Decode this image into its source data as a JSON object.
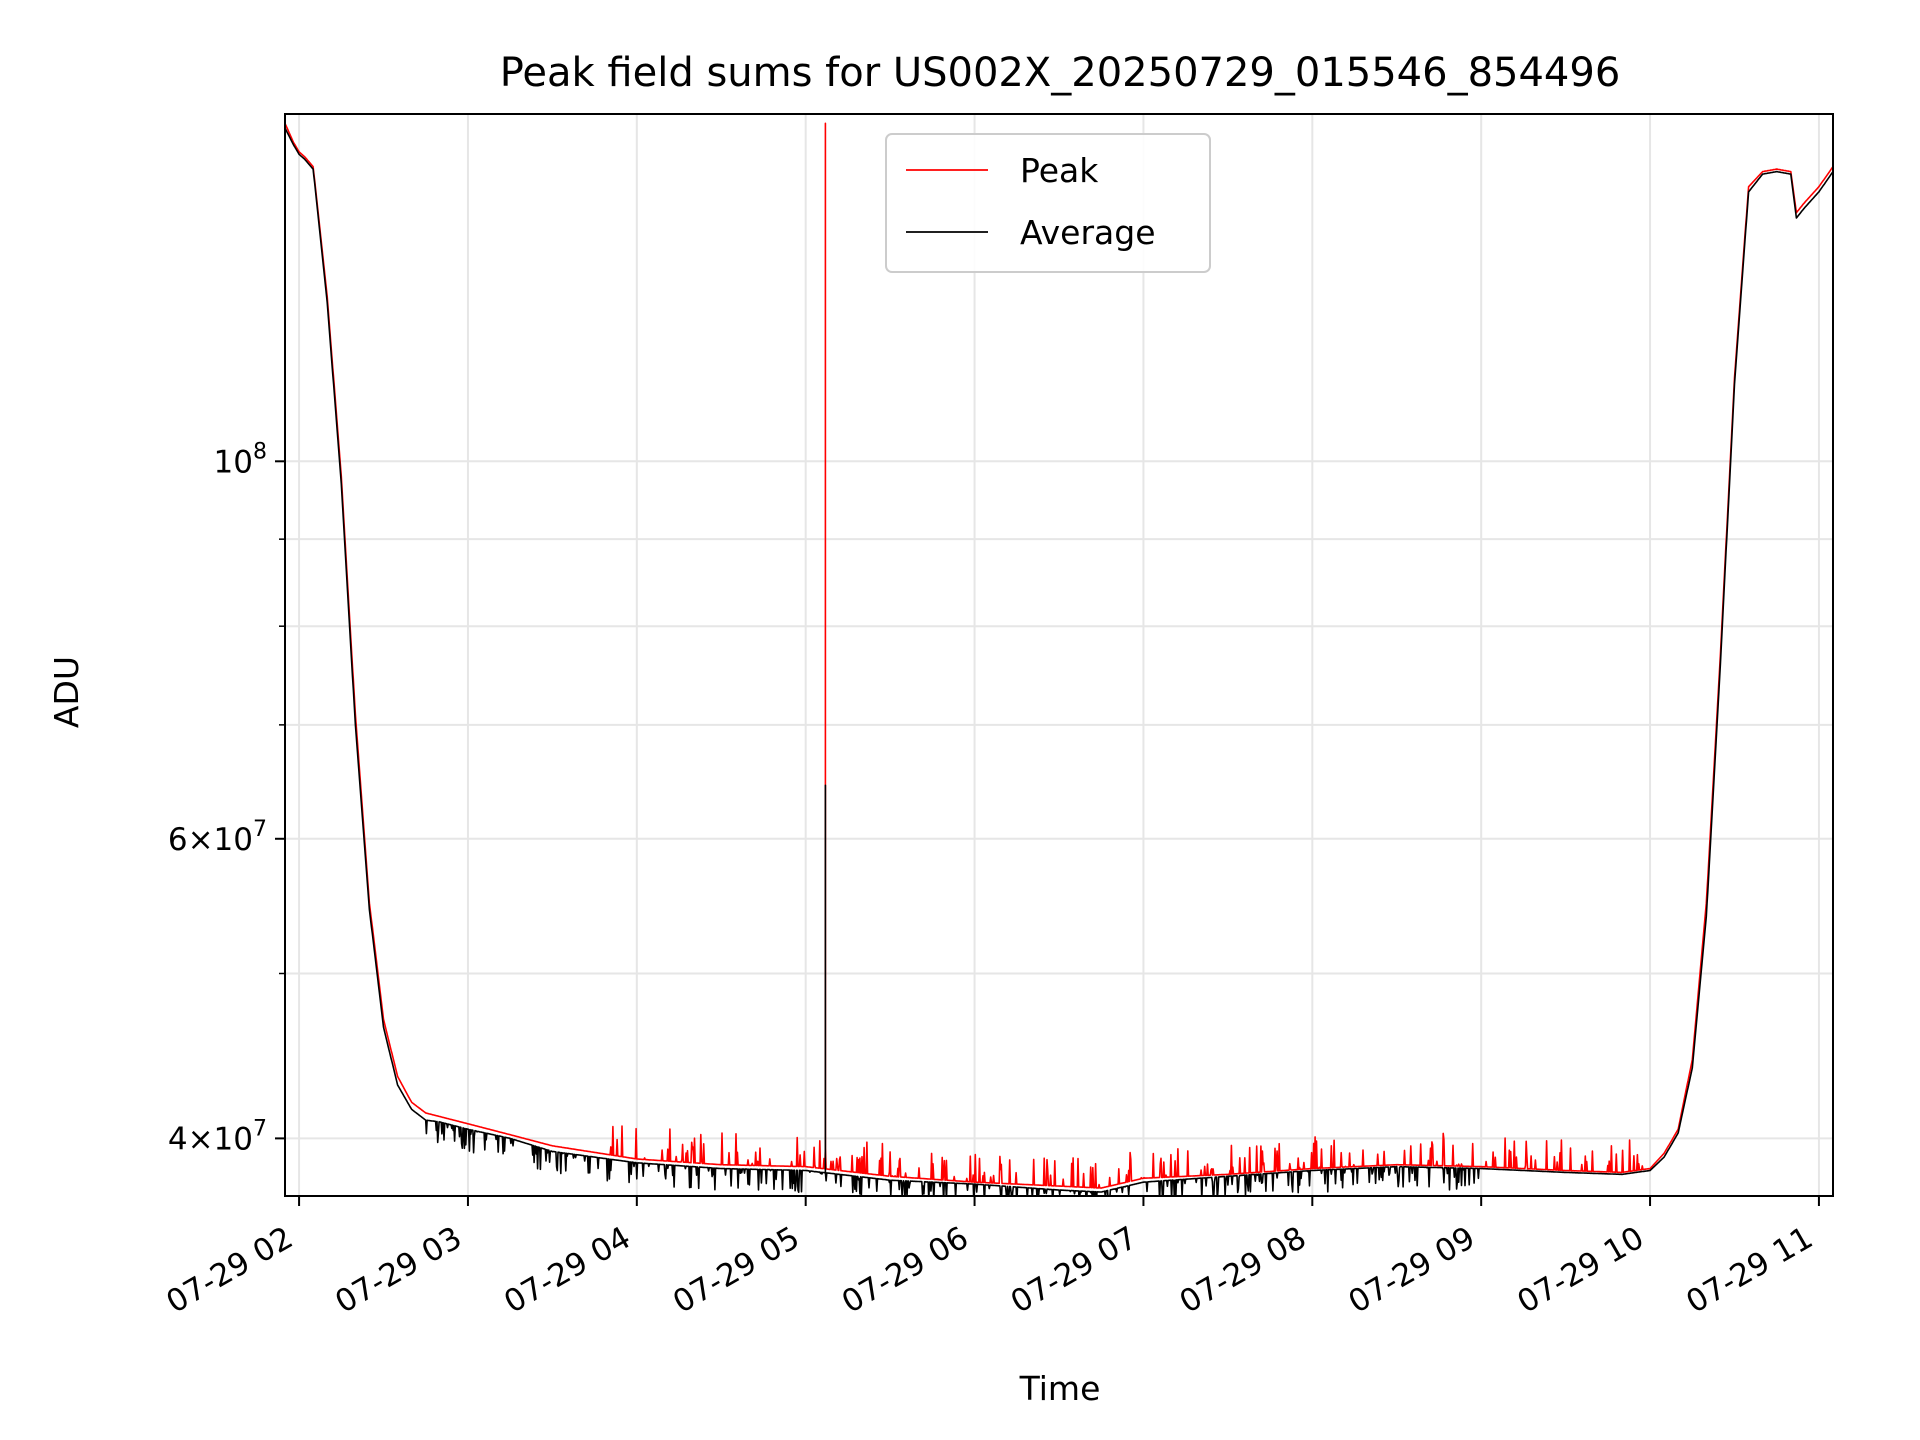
{
  "chart_data": {
    "type": "line",
    "title": "Peak field sums for US002X_20250729_015546_854496",
    "xlabel": "Time",
    "ylabel": "ADU",
    "y_scale": "log",
    "xlim": [
      "07-29 01:55",
      "07-29 11:05"
    ],
    "ylim": [
      37000000,
      160000000
    ],
    "x_ticks": [
      "07-29 02",
      "07-29 03",
      "07-29 04",
      "07-29 05",
      "07-29 06",
      "07-29 07",
      "07-29 08",
      "07-29 09",
      "07-29 10",
      "07-29 11"
    ],
    "y_major_ticks": [
      {
        "value": 40000000,
        "base": "4",
        "exp": "7",
        "has_mult": true
      },
      {
        "value": 60000000,
        "base": "6",
        "exp": "7",
        "has_mult": true
      },
      {
        "value": 100000000,
        "base": "10",
        "exp": "8",
        "has_mult": false
      }
    ],
    "y_minor_ticks": [
      50000000,
      70000000,
      80000000,
      90000000
    ],
    "grid": true,
    "legend": {
      "placement": "upper-center"
    },
    "colors": {
      "Peak": "#ff0000",
      "Average": "#000000"
    },
    "series": [
      {
        "name": "Peak",
        "x": [
          "01:55",
          "01:58",
          "02:00",
          "02:02",
          "02:05",
          "02:10",
          "02:15",
          "02:20",
          "02:25",
          "02:30",
          "02:35",
          "02:40",
          "02:45",
          "02:50",
          "03:00",
          "03:15",
          "03:30",
          "04:00",
          "04:30",
          "05:00",
          "05:30",
          "06:00",
          "06:30",
          "06:45",
          "07:00",
          "07:30",
          "08:00",
          "08:30",
          "09:00",
          "09:30",
          "09:50",
          "10:00",
          "10:05",
          "10:10",
          "10:15",
          "10:20",
          "10:25",
          "10:30",
          "10:35",
          "10:40",
          "10:45",
          "10:50",
          "10:52",
          "10:55",
          "11:00",
          "11:05"
        ],
        "y": [
          158000000,
          154000000,
          152000000,
          151000000,
          149000000,
          125000000,
          98000000,
          71000000,
          55000000,
          47000000,
          43500000,
          42000000,
          41400000,
          41200000,
          40800000,
          40200000,
          39600000,
          38900000,
          38600000,
          38500000,
          38000000,
          37700000,
          37500000,
          37400000,
          37900000,
          38100000,
          38400000,
          38600000,
          38500000,
          38300000,
          38200000,
          38400000,
          39200000,
          40500000,
          44500000,
          55000000,
          77000000,
          112000000,
          145000000,
          148000000,
          148500000,
          148000000,
          140000000,
          142000000,
          145000000,
          149000000
        ],
        "spike": {
          "x": "05:07",
          "y": 158000000
        }
      },
      {
        "name": "Average",
        "x": [
          "01:55",
          "01:58",
          "02:00",
          "02:02",
          "02:05",
          "02:10",
          "02:15",
          "02:20",
          "02:25",
          "02:30",
          "02:35",
          "02:40",
          "02:45",
          "02:50",
          "03:00",
          "03:15",
          "03:30",
          "04:00",
          "04:30",
          "05:00",
          "05:30",
          "06:00",
          "06:30",
          "06:45",
          "07:00",
          "07:30",
          "08:00",
          "08:30",
          "09:00",
          "09:30",
          "09:50",
          "10:00",
          "10:05",
          "10:10",
          "10:15",
          "10:20",
          "10:25",
          "10:30",
          "10:35",
          "10:40",
          "10:45",
          "10:50",
          "10:52",
          "10:55",
          "11:00",
          "11:05"
        ],
        "y": [
          157000000,
          153500000,
          151500000,
          150500000,
          148500000,
          124000000,
          97000000,
          70000000,
          54500000,
          46500000,
          43000000,
          41600000,
          41000000,
          40900000,
          40500000,
          40000000,
          39300000,
          38700000,
          38400000,
          38300000,
          37800000,
          37600000,
          37300000,
          37200000,
          37700000,
          38000000,
          38300000,
          38500000,
          38400000,
          38200000,
          38100000,
          38300000,
          39000000,
          40300000,
          44000000,
          54000000,
          76000000,
          111000000,
          144000000,
          147500000,
          148000000,
          147500000,
          139000000,
          141000000,
          144000000,
          148000000
        ],
        "spike": {
          "x": "05:07",
          "y": 64500000
        }
      }
    ]
  }
}
